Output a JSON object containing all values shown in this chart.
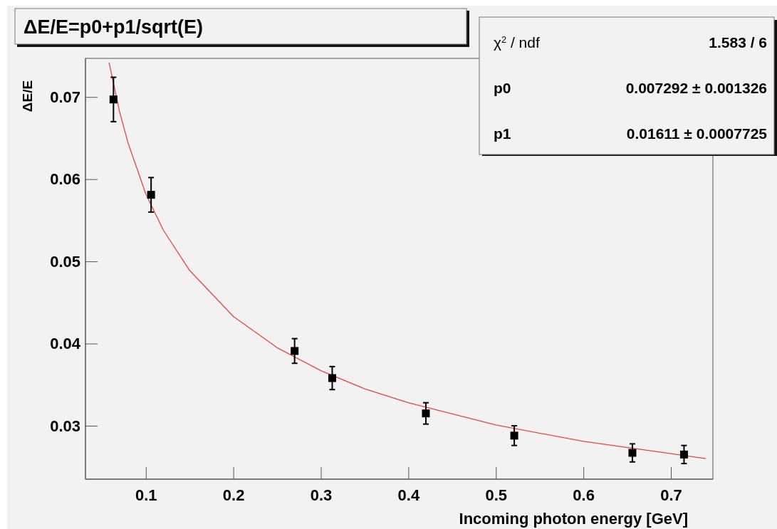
{
  "chart_data": {
    "type": "scatter",
    "title": "ΔE/E=p0+p1/sqrt(E)",
    "xlabel": "Incoming photon energy [GeV]",
    "ylabel": "ΔE/E",
    "annotations": [
      "χ$^{2}$ / ndf",
      "1.583 / 6",
      "p0",
      "0.007292 ± 0.001326",
      "p1",
      "0.01611 ± 0.0007725"
    ],
    "xlim": [
      0.031,
      0.748
    ],
    "ylim": [
      0.0235,
      0.0747
    ],
    "xticks": [
      0.1,
      0.2,
      0.3,
      0.4,
      0.5,
      0.6,
      0.7
    ],
    "yticks": [
      0.03,
      0.04,
      0.05,
      0.06,
      0.07
    ],
    "grid": false,
    "series": [
      {
        "type": "line",
        "color": "#e8453c",
        "marker": "none",
        "line_style": "solid",
        "x": [
          0.058,
          0.07,
          0.08,
          0.1,
          0.12,
          0.15,
          0.2,
          0.25,
          0.3,
          0.35,
          0.4,
          0.5,
          0.6,
          0.7,
          0.74
        ],
        "values": [
          0.0742,
          0.0682,
          0.0643,
          0.0582,
          0.0538,
          0.0489,
          0.0433,
          0.0395,
          0.0367,
          0.0345,
          0.0328,
          0.0301,
          0.0281,
          0.0266,
          0.026
        ]
      },
      {
        "color": "#000000",
        "marker": "square",
        "x": [
          0.063,
          0.106,
          0.27,
          0.313,
          0.42,
          0.521,
          0.656,
          0.715
        ],
        "values": [
          0.0697,
          0.0581,
          0.0391,
          0.0358,
          0.0315,
          0.0288,
          0.0267,
          0.0265
        ],
        "errors": [
          0.0027,
          0.0021,
          0.0015,
          0.0014,
          0.0013,
          0.0012,
          0.0011,
          0.0011
        ]
      }
    ]
  }
}
